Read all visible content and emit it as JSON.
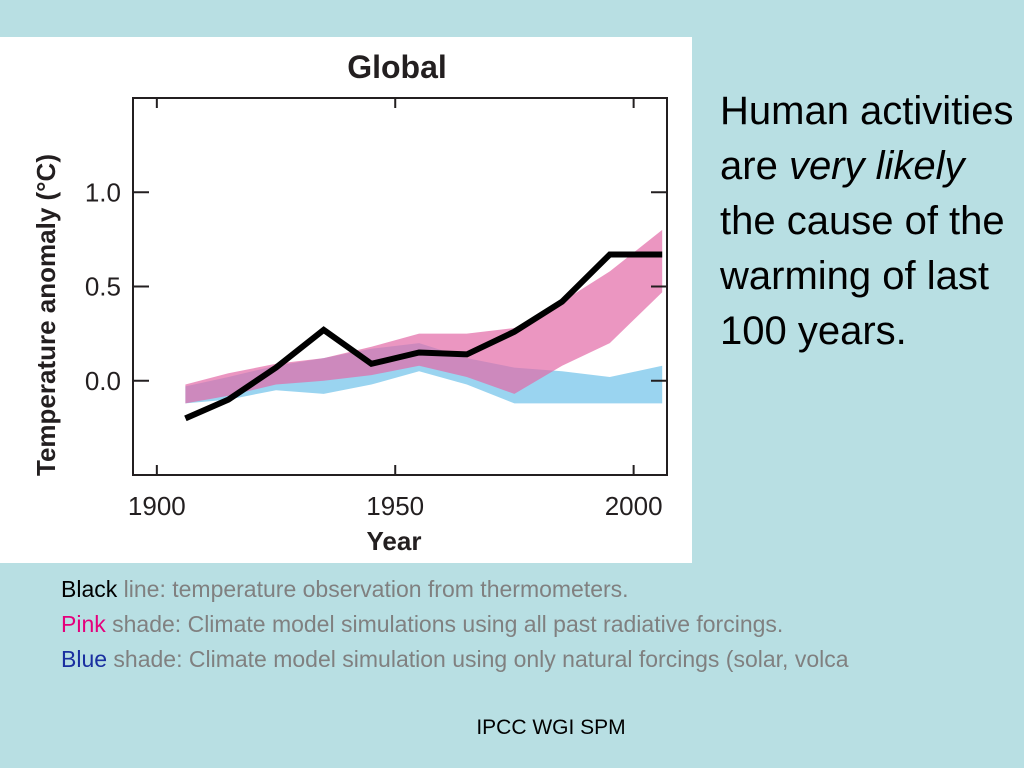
{
  "chart_data": {
    "type": "line",
    "title": "Global",
    "xlabel": "Year",
    "ylabel": "Temperature anomaly (°C)",
    "xlim": [
      1895,
      2007
    ],
    "ylim": [
      -0.5,
      1.5
    ],
    "x_ticks": [
      1900,
      1950,
      2000
    ],
    "x_tick_labels": [
      "1900",
      "1950",
      "2000"
    ],
    "y_ticks": [
      0.0,
      0.5,
      1.0
    ],
    "y_tick_labels": [
      "0.0",
      "0.5",
      "1.0"
    ],
    "grid": false,
    "series": [
      {
        "kind": "band",
        "color": "#8fcfee",
        "opacity": 0.9,
        "x": [
          1906,
          1915,
          1925,
          1935,
          1945,
          1955,
          1965,
          1975,
          1985,
          1995,
          2006
        ],
        "lower": [
          -0.12,
          -0.1,
          -0.05,
          -0.07,
          -0.02,
          0.05,
          -0.02,
          -0.12,
          -0.12,
          -0.12,
          -0.12
        ],
        "upper": [
          -0.03,
          0.02,
          0.08,
          0.12,
          0.17,
          0.2,
          0.12,
          0.07,
          0.05,
          0.02,
          0.08
        ]
      },
      {
        "kind": "band",
        "color": "#e36aa7",
        "opacity": 0.7,
        "x": [
          1906,
          1915,
          1925,
          1935,
          1945,
          1955,
          1965,
          1975,
          1985,
          1995,
          2006
        ],
        "lower": [
          -0.12,
          -0.08,
          -0.02,
          0.0,
          0.03,
          0.08,
          0.02,
          -0.07,
          0.08,
          0.2,
          0.47
        ],
        "upper": [
          -0.02,
          0.04,
          0.09,
          0.12,
          0.18,
          0.25,
          0.25,
          0.28,
          0.42,
          0.58,
          0.8
        ]
      },
      {
        "kind": "line",
        "color": "#000000",
        "x": [
          1906,
          1915,
          1925,
          1935,
          1945,
          1955,
          1965,
          1975,
          1985,
          1995,
          2006
        ],
        "y": [
          -0.2,
          -0.1,
          0.07,
          0.27,
          0.09,
          0.15,
          0.14,
          0.26,
          0.42,
          0.67,
          0.67
        ]
      }
    ]
  },
  "headline": {
    "before": "Human activities are",
    "emphasis": "very likely",
    "after": "the cause of the warming of last 100 years."
  },
  "notes": [
    {
      "key": "Black",
      "key_color": "#000000",
      "text": " line: temperature observation from thermometers."
    },
    {
      "key": "Pink",
      "key_color": "#e4007c",
      "text": " shade: Climate model simulations using all past radiative forcings."
    },
    {
      "key": "Blue",
      "key_color": "#1a2fa0",
      "text": " shade: Climate model simulation using only natural forcings (solar, volca"
    }
  ],
  "source": "IPCC WGI SPM"
}
